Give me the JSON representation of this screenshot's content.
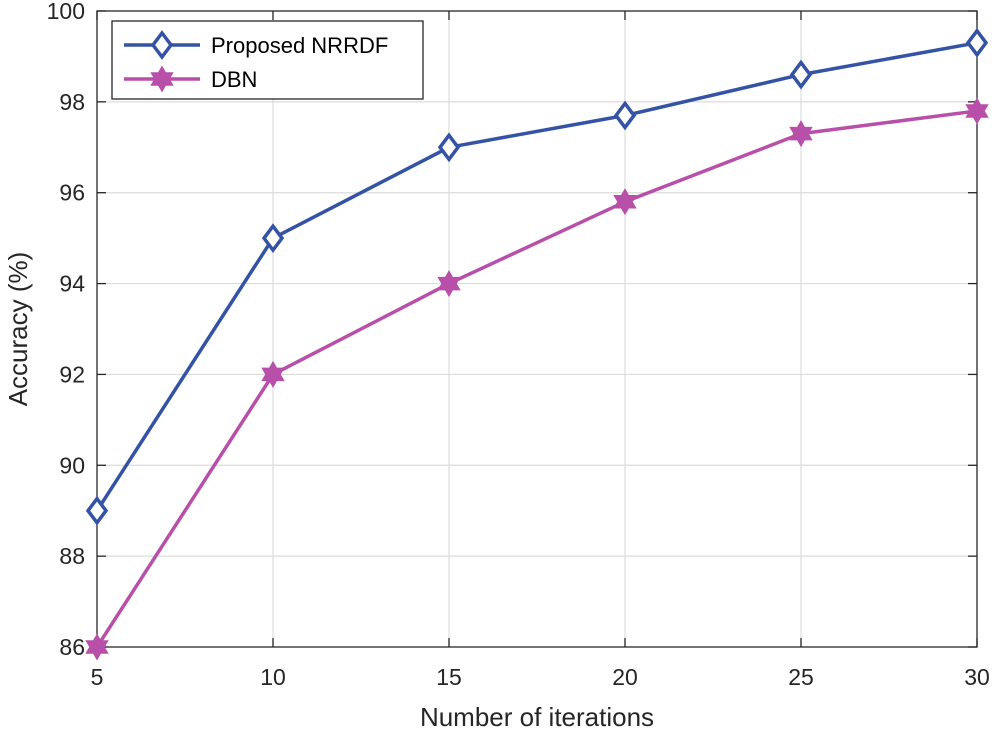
{
  "chart_data": {
    "type": "line",
    "title": "",
    "xlabel": "Number of iterations",
    "ylabel": "Accuracy (%)",
    "x": [
      5,
      10,
      15,
      20,
      25,
      30
    ],
    "xlim": [
      5,
      30
    ],
    "ylim": [
      86,
      100
    ],
    "xticks": [
      "5",
      "10",
      "15",
      "20",
      "25",
      "30"
    ],
    "yticks": [
      "86",
      "88",
      "90",
      "92",
      "94",
      "96",
      "98",
      "100"
    ],
    "grid": true,
    "legend_position": "top-left",
    "series": [
      {
        "name": "Proposed NRRDF",
        "values": [
          89.0,
          95.0,
          97.0,
          97.7,
          98.6,
          99.3
        ],
        "color": "#3453a4",
        "marker": "diamond"
      },
      {
        "name": "DBN",
        "values": [
          86.0,
          92.0,
          94.0,
          95.8,
          97.3,
          97.8
        ],
        "color": "#b84fa8",
        "marker": "hexagram"
      }
    ]
  }
}
